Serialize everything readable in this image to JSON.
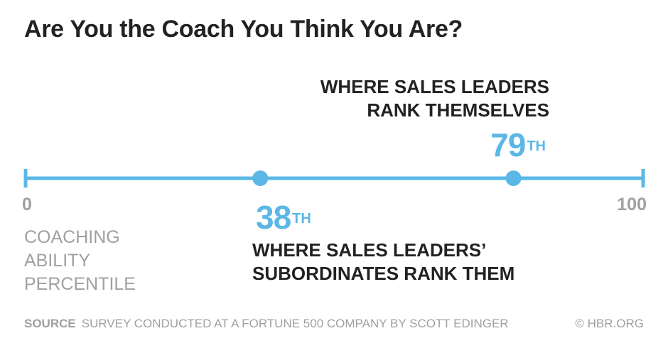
{
  "title": "Are You the Coach You Think You Are?",
  "colors": {
    "accent": "#5bb8e6",
    "text": "#222222",
    "muted": "#a0a0a0"
  },
  "chart_data": {
    "type": "scatter",
    "title": "Are You the Coach You Think You Are?",
    "xlabel": "COACHING ABILITY PERCENTILE",
    "xlim": [
      0,
      100
    ],
    "tick_labels": {
      "min": "0",
      "max": "100"
    },
    "points": [
      {
        "name": "self",
        "value": 79,
        "value_label": "79",
        "suffix": "TH",
        "annotation_lines": [
          "WHERE SALES LEADERS",
          "RANK THEMSELVES"
        ]
      },
      {
        "name": "subordinates",
        "value": 38,
        "value_label": "38",
        "suffix": "TH",
        "annotation_lines": [
          "WHERE SALES LEADERS’",
          "SUBORDINATES RANK THEM"
        ]
      }
    ]
  },
  "axis_label_lines": [
    "COACHING",
    "ABILITY",
    "PERCENTILE"
  ],
  "footer": {
    "source_label": "SOURCE",
    "source_text": "SURVEY CONDUCTED AT A FORTUNE 500 COMPANY BY SCOTT EDINGER",
    "credit": "© HBR.ORG"
  }
}
